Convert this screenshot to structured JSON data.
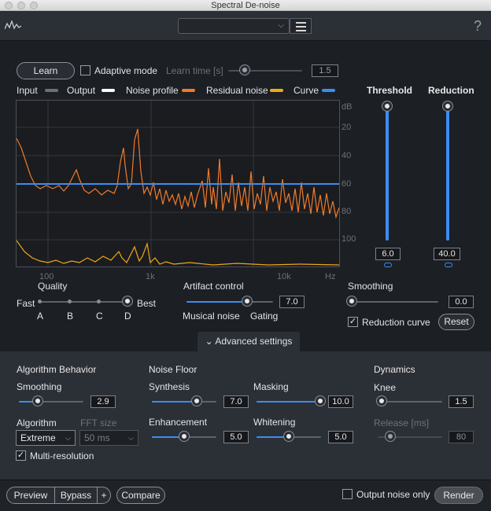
{
  "window": {
    "title": "Spectral De-noise"
  },
  "header": {
    "preset_value": "",
    "help": "?"
  },
  "top": {
    "learn": "Learn",
    "adaptive_mode": "Adaptive mode",
    "learn_time_label": "Learn time [s]",
    "learn_time_value": "1.5",
    "learn_time_level": 0.3
  },
  "legend": {
    "input": "Input",
    "output": "Output",
    "noise_profile": "Noise profile",
    "residual_noise": "Residual noise",
    "curve": "Curve",
    "colors": {
      "input": "#6b7178",
      "output": "#ffffff",
      "noise_profile": "#f07a2a",
      "residual_noise": "#f0a818",
      "curve": "#3b8ef0"
    }
  },
  "graph": {
    "db_unit": "dB",
    "db_ticks": [
      "20",
      "40",
      "60",
      "80",
      "100"
    ],
    "freq_ticks": [
      "100",
      "1k",
      "10k",
      "Hz"
    ]
  },
  "threshold": {
    "label": "Threshold",
    "value": "6.0"
  },
  "reduction": {
    "label": "Reduction",
    "value": "40.0"
  },
  "quality": {
    "label": "Quality",
    "fast": "Fast",
    "best": "Best",
    "steps": [
      "A",
      "B",
      "C",
      "D"
    ],
    "selected": "D"
  },
  "artifact": {
    "label": "Artifact control",
    "value": "7.0",
    "left": "Musical noise",
    "right": "Gating",
    "level": 0.7
  },
  "smoothing_top": {
    "label": "Smoothing",
    "value": "0.0",
    "level": 0.0
  },
  "reduction_curve": {
    "label": "Reduction curve",
    "checked": true
  },
  "reset": "Reset",
  "advanced": {
    "label": "Advanced settings",
    "icon": "chevron-down-icon"
  },
  "algo_behavior": {
    "title": "Algorithm Behavior",
    "smoothing_label": "Smoothing",
    "smoothing_value": "2.9",
    "smoothing_level": 0.29,
    "algorithm_label": "Algorithm",
    "algorithm_value": "Extreme",
    "fft_label": "FFT size",
    "fft_value": "50 ms",
    "multires": "Multi-resolution",
    "multires_checked": true
  },
  "noise_floor": {
    "title": "Noise Floor",
    "synthesis_label": "Synthesis",
    "synthesis_value": "7.0",
    "synthesis_level": 0.7,
    "masking_label": "Masking",
    "masking_value": "10.0",
    "masking_level": 1.0,
    "enhancement_label": "Enhancement",
    "enhancement_value": "5.0",
    "enhancement_level": 0.5,
    "whitening_label": "Whitening",
    "whitening_value": "5.0",
    "whitening_level": 0.5
  },
  "dynamics": {
    "title": "Dynamics",
    "knee_label": "Knee",
    "knee_value": "1.5",
    "knee_level": 0.0,
    "release_label": "Release [ms]",
    "release_value": "80",
    "release_level": 0.1
  },
  "footer": {
    "preview": "Preview",
    "bypass": "Bypass",
    "plus": "+",
    "compare": "Compare",
    "output_noise_only": "Output noise only",
    "render": "Render"
  }
}
